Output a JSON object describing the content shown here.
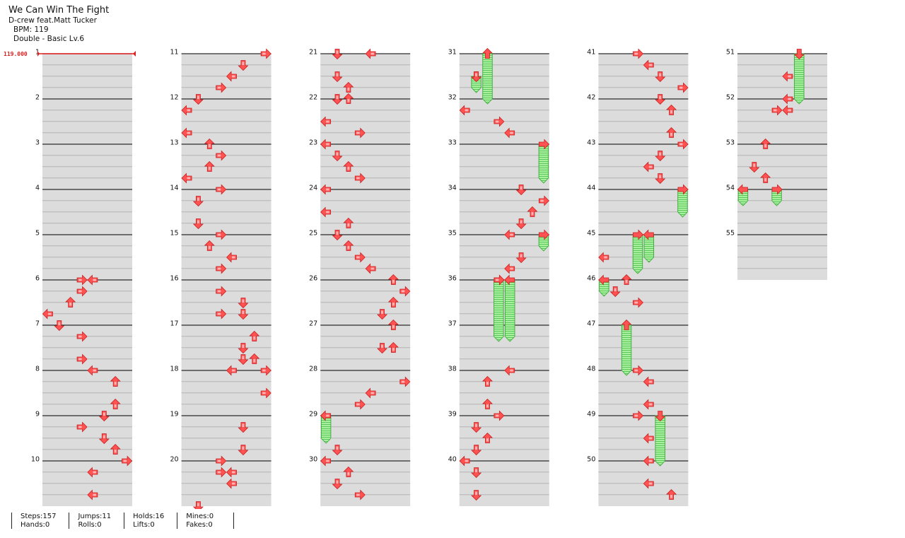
{
  "song": {
    "title": "We Can Win The Fight",
    "artist": "D-crew feat.Matt Tucker",
    "bpm_label": "BPM: 119",
    "difficulty": "Double - Basic Lv.6"
  },
  "bpm_marker": "119.000",
  "stats": [
    {
      "label1": "Steps:",
      "value1": "157",
      "label2": "Hands:",
      "value2": "0"
    },
    {
      "label1": "Jumps:",
      "value1": "11",
      "label2": "Rolls:",
      "value2": "0"
    },
    {
      "label1": "Holds:",
      "value1": "16",
      "label2": "Lifts:",
      "value2": "0"
    },
    {
      "label1": "Mines:",
      "value1": "0",
      "label2": "Fakes:",
      "value2": "0"
    }
  ],
  "chart_data": {
    "type": "step-chart",
    "panels": 8,
    "panel_directions": [
      "L",
      "D",
      "U",
      "R",
      "L",
      "D",
      "U",
      "R"
    ],
    "rows_per_measure": 16,
    "total_measures": 55,
    "measures_per_column": 10,
    "measure_labels": [
      "1",
      "2",
      "3",
      "4",
      "5",
      "6",
      "7",
      "8",
      "9",
      "10",
      "11",
      "12",
      "13",
      "14",
      "15",
      "16",
      "17",
      "18",
      "19",
      "20",
      "21",
      "22",
      "23",
      "24",
      "25",
      "26",
      "27",
      "28",
      "29",
      "30",
      "31",
      "32",
      "33",
      "34",
      "35",
      "36",
      "37",
      "38",
      "39",
      "40",
      "41",
      "42",
      "43",
      "44",
      "45",
      "46",
      "47",
      "48",
      "49",
      "50",
      "51",
      "52",
      "53",
      "54",
      "55"
    ],
    "notes": [
      [
        6,
        0,
        3
      ],
      [
        6,
        0,
        4
      ],
      [
        6,
        4,
        3
      ],
      [
        6,
        8,
        2
      ],
      [
        6,
        12,
        0
      ],
      [
        7,
        0,
        1
      ],
      [
        7,
        4,
        3
      ],
      [
        7,
        12,
        3
      ],
      [
        8,
        0,
        4
      ],
      [
        8,
        4,
        6
      ],
      [
        8,
        12,
        6
      ],
      [
        9,
        0,
        5
      ],
      [
        9,
        4,
        3
      ],
      [
        9,
        8,
        5
      ],
      [
        9,
        12,
        6
      ],
      [
        10,
        0,
        7
      ],
      [
        10,
        4,
        4
      ],
      [
        10,
        12,
        4
      ],
      [
        11,
        0,
        7
      ],
      [
        11,
        4,
        5
      ],
      [
        11,
        8,
        4
      ],
      [
        11,
        12,
        3
      ],
      [
        12,
        0,
        1
      ],
      [
        12,
        4,
        0
      ],
      [
        12,
        12,
        0
      ],
      [
        13,
        0,
        2
      ],
      [
        13,
        4,
        3
      ],
      [
        13,
        8,
        2
      ],
      [
        13,
        12,
        0
      ],
      [
        14,
        0,
        3
      ],
      [
        14,
        4,
        1
      ],
      [
        14,
        12,
        1
      ],
      [
        15,
        0,
        3
      ],
      [
        15,
        4,
        2
      ],
      [
        15,
        8,
        4
      ],
      [
        15,
        12,
        3
      ],
      [
        16,
        4,
        3
      ],
      [
        16,
        8,
        5
      ],
      [
        16,
        12,
        3
      ],
      [
        16,
        12,
        5
      ],
      [
        17,
        4,
        6
      ],
      [
        17,
        8,
        5
      ],
      [
        17,
        12,
        5
      ],
      [
        17,
        12,
        6
      ],
      [
        18,
        0,
        4
      ],
      [
        18,
        0,
        7
      ],
      [
        18,
        8,
        7
      ],
      [
        19,
        4,
        5
      ],
      [
        19,
        12,
        5
      ],
      [
        20,
        0,
        3
      ],
      [
        20,
        4,
        3
      ],
      [
        20,
        4,
        4
      ],
      [
        20,
        8,
        4
      ],
      [
        20,
        16,
        1
      ],
      [
        21,
        0,
        1
      ],
      [
        21,
        0,
        4
      ],
      [
        21,
        8,
        1
      ],
      [
        21,
        12,
        2
      ],
      [
        22,
        0,
        1
      ],
      [
        22,
        0,
        2
      ],
      [
        22,
        8,
        0
      ],
      [
        22,
        12,
        3
      ],
      [
        23,
        0,
        0
      ],
      [
        23,
        4,
        1
      ],
      [
        23,
        8,
        2
      ],
      [
        23,
        12,
        3
      ],
      [
        24,
        0,
        0
      ],
      [
        24,
        8,
        0
      ],
      [
        24,
        12,
        2
      ],
      [
        25,
        0,
        1
      ],
      [
        25,
        4,
        2
      ],
      [
        25,
        8,
        3
      ],
      [
        25,
        12,
        4
      ],
      [
        26,
        0,
        6
      ],
      [
        26,
        4,
        7
      ],
      [
        26,
        8,
        6
      ],
      [
        26,
        12,
        5
      ],
      [
        27,
        0,
        6
      ],
      [
        27,
        8,
        5
      ],
      [
        27,
        8,
        6
      ],
      [
        28,
        4,
        7
      ],
      [
        28,
        8,
        4
      ],
      [
        28,
        12,
        3
      ],
      [
        29,
        0,
        0
      ],
      [
        29,
        12,
        1
      ],
      [
        30,
        0,
        0
      ],
      [
        30,
        4,
        2
      ],
      [
        30,
        8,
        1
      ],
      [
        30,
        12,
        3
      ],
      [
        31,
        8,
        1
      ],
      [
        32,
        4,
        0
      ],
      [
        32,
        8,
        3
      ],
      [
        32,
        12,
        4
      ],
      [
        34,
        0,
        5
      ],
      [
        34,
        4,
        7
      ],
      [
        34,
        8,
        6
      ],
      [
        34,
        12,
        5
      ],
      [
        35,
        0,
        4
      ],
      [
        35,
        8,
        5
      ],
      [
        35,
        12,
        4
      ],
      [
        36,
        0,
        3
      ],
      [
        38,
        0,
        4
      ],
      [
        38,
        4,
        2
      ],
      [
        38,
        12,
        2
      ],
      [
        39,
        0,
        3
      ],
      [
        39,
        4,
        1
      ],
      [
        39,
        8,
        2
      ],
      [
        39,
        12,
        1
      ],
      [
        40,
        0,
        0
      ],
      [
        40,
        4,
        1
      ],
      [
        40,
        12,
        1
      ],
      [
        41,
        0,
        3
      ],
      [
        41,
        4,
        4
      ],
      [
        41,
        8,
        5
      ],
      [
        41,
        12,
        7
      ],
      [
        42,
        0,
        5
      ],
      [
        42,
        4,
        6
      ],
      [
        42,
        12,
        6
      ],
      [
        43,
        0,
        7
      ],
      [
        43,
        4,
        5
      ],
      [
        43,
        8,
        4
      ],
      [
        43,
        12,
        5
      ],
      [
        45,
        8,
        0
      ],
      [
        46,
        0,
        2
      ],
      [
        46,
        4,
        1
      ],
      [
        46,
        8,
        3
      ],
      [
        48,
        0,
        3
      ],
      [
        48,
        4,
        4
      ],
      [
        48,
        12,
        4
      ],
      [
        49,
        0,
        3
      ],
      [
        49,
        8,
        4
      ],
      [
        50,
        0,
        4
      ],
      [
        50,
        8,
        4
      ],
      [
        50,
        12,
        6
      ],
      [
        51,
        8,
        4
      ],
      [
        52,
        0,
        4
      ],
      [
        52,
        4,
        3
      ],
      [
        52,
        4,
        4
      ],
      [
        53,
        0,
        2
      ],
      [
        53,
        8,
        1
      ],
      [
        53,
        12,
        2
      ]
    ],
    "holds": [
      [
        29,
        0,
        0,
        29,
        8
      ],
      [
        31,
        0,
        2,
        32,
        0
      ],
      [
        31,
        8,
        1,
        31,
        12
      ],
      [
        33,
        0,
        7,
        33,
        12
      ],
      [
        35,
        0,
        7,
        35,
        4
      ],
      [
        36,
        0,
        3,
        37,
        4
      ],
      [
        36,
        0,
        4,
        37,
        4
      ],
      [
        44,
        0,
        7,
        44,
        8
      ],
      [
        45,
        0,
        4,
        45,
        8
      ],
      [
        45,
        0,
        3,
        45,
        12
      ],
      [
        46,
        0,
        0,
        46,
        4
      ],
      [
        47,
        0,
        2,
        48,
        0
      ],
      [
        49,
        0,
        5,
        50,
        0
      ],
      [
        51,
        0,
        5,
        52,
        0
      ],
      [
        54,
        0,
        0,
        54,
        4
      ],
      [
        54,
        0,
        3,
        54,
        4
      ]
    ]
  }
}
